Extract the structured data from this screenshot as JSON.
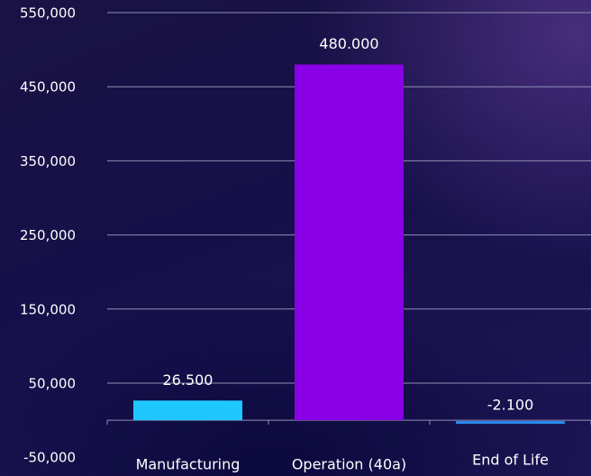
{
  "chart_data": {
    "type": "bar",
    "title": "",
    "xlabel": "",
    "ylabel": "",
    "categories": [
      "Manufacturing",
      "Operation (40a)",
      "End of Life"
    ],
    "values": [
      26500,
      480000,
      -2100
    ],
    "data_labels": [
      "26.500",
      "480.000",
      "-2.100"
    ],
    "yticks": [
      550000,
      450000,
      350000,
      250000,
      150000,
      50000,
      -50000
    ],
    "ytick_labels": [
      "550,000",
      "450,000",
      "350,000",
      "250,000",
      "150,000",
      "50,000",
      "-50,000"
    ],
    "ylim": [
      -50000,
      550000
    ],
    "grid": true,
    "colors": {
      "bars": [
        "#1ec8ff",
        "#8a00e6",
        "#2a8cf0"
      ],
      "grid": "#8f8fb4",
      "text": "#ffffff",
      "background": "#140e42"
    }
  }
}
